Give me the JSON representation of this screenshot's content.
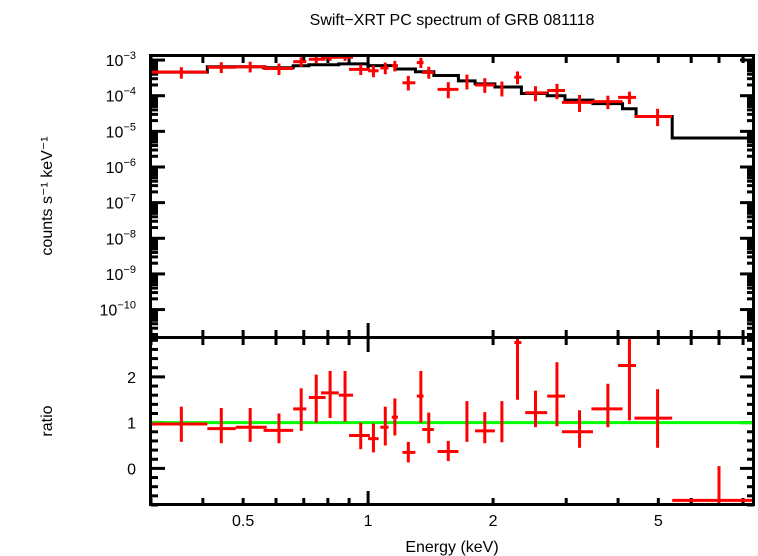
{
  "chart_data": {
    "type": "scatter",
    "title": "Swift−XRT PC spectrum of GRB 081118",
    "xlabel": "Energy (keV)",
    "xscale": "log",
    "xlim": [
      0.3,
      8.5
    ],
    "x_ticks": [
      {
        "value": 0.5,
        "label": "0.5"
      },
      {
        "value": 1,
        "label": "1"
      },
      {
        "value": 2,
        "label": "2"
      },
      {
        "value": 5,
        "label": "5"
      }
    ],
    "colors": {
      "data": "#ff0000",
      "model": "#000000",
      "unity_line": "#00ff00",
      "axes": "#000000"
    },
    "panels": [
      {
        "name": "spectrum",
        "ylabel": "counts s⁻¹ keV⁻¹",
        "yscale": "log",
        "ylim": [
          1.7e-11,
          0.0013
        ],
        "y_ticks": [
          {
            "value": 0.001,
            "base": "10",
            "exp": "−3"
          },
          {
            "value": 0.0001,
            "base": "10",
            "exp": "−4"
          },
          {
            "value": 1e-05,
            "base": "10",
            "exp": "−5"
          },
          {
            "value": 1e-06,
            "base": "10",
            "exp": "−6"
          },
          {
            "value": 1e-07,
            "base": "10",
            "exp": "−7"
          },
          {
            "value": 1e-08,
            "base": "10",
            "exp": "−8"
          },
          {
            "value": 1e-09,
            "base": "10",
            "exp": "−9"
          },
          {
            "value": 1e-10,
            "base": "10",
            "exp": "−10"
          }
        ],
        "data": [
          {
            "x": 0.355,
            "xlo": 0.3,
            "xhi": 0.41,
            "y": 0.00046,
            "ylo": 0.0003,
            "yhi": 0.00063
          },
          {
            "x": 0.443,
            "xlo": 0.41,
            "xhi": 0.48,
            "y": 0.00063,
            "ylo": 0.00043,
            "yhi": 0.00087
          },
          {
            "x": 0.52,
            "xlo": 0.48,
            "xhi": 0.57,
            "y": 0.00065,
            "ylo": 0.00045,
            "yhi": 0.0009
          },
          {
            "x": 0.61,
            "xlo": 0.56,
            "xhi": 0.66,
            "y": 0.00058,
            "ylo": 0.00038,
            "yhi": 0.0008
          },
          {
            "x": 0.69,
            "xlo": 0.66,
            "xhi": 0.71,
            "y": 0.0009,
            "ylo": 0.00065,
            "yhi": 0.0012
          },
          {
            "x": 0.75,
            "xlo": 0.72,
            "xhi": 0.79,
            "y": 0.00105,
            "ylo": 0.0008,
            "yhi": 0.0013
          },
          {
            "x": 0.81,
            "xlo": 0.77,
            "xhi": 0.85,
            "y": 0.0012,
            "ylo": 0.00095,
            "yhi": 0.0013
          },
          {
            "x": 0.88,
            "xlo": 0.85,
            "xhi": 0.92,
            "y": 0.0012,
            "ylo": 0.00095,
            "yhi": 0.0013
          },
          {
            "x": 0.96,
            "xlo": 0.9,
            "xhi": 1.01,
            "y": 0.00055,
            "ylo": 0.00038,
            "yhi": 0.00075
          },
          {
            "x": 1.03,
            "xlo": 1.0,
            "xhi": 1.06,
            "y": 0.0005,
            "ylo": 0.00033,
            "yhi": 0.0007
          },
          {
            "x": 1.1,
            "xlo": 1.07,
            "xhi": 1.12,
            "y": 0.0006,
            "ylo": 0.0004,
            "yhi": 0.00085
          },
          {
            "x": 1.16,
            "xlo": 1.14,
            "xhi": 1.18,
            "y": 0.0007,
            "ylo": 0.00048,
            "yhi": 0.00095
          },
          {
            "x": 1.25,
            "xlo": 1.21,
            "xhi": 1.3,
            "y": 0.00023,
            "ylo": 0.00014,
            "yhi": 0.00036
          },
          {
            "x": 1.34,
            "xlo": 1.31,
            "xhi": 1.36,
            "y": 0.00085,
            "ylo": 0.0006,
            "yhi": 0.00115
          },
          {
            "x": 1.4,
            "xlo": 1.35,
            "xhi": 1.44,
            "y": 0.00045,
            "ylo": 0.0003,
            "yhi": 0.00065
          },
          {
            "x": 1.56,
            "xlo": 1.47,
            "xhi": 1.65,
            "y": 0.00015,
            "ylo": 8.5e-05,
            "yhi": 0.00024
          },
          {
            "x": 1.73,
            "xlo": 1.72,
            "xhi": 1.74,
            "y": 0.00025,
            "ylo": 0.00015,
            "yhi": 0.00039
          },
          {
            "x": 1.91,
            "xlo": 1.81,
            "xhi": 2.02,
            "y": 0.0002,
            "ylo": 0.00012,
            "yhi": 0.00031
          },
          {
            "x": 2.1,
            "xlo": 2.09,
            "xhi": 2.11,
            "y": 0.00016,
            "ylo": 9.5e-05,
            "yhi": 0.00025
          },
          {
            "x": 2.29,
            "xlo": 2.25,
            "xhi": 2.34,
            "y": 0.00033,
            "ylo": 0.00021,
            "yhi": 0.00048
          },
          {
            "x": 2.53,
            "xlo": 2.39,
            "xhi": 2.7,
            "y": 0.00012,
            "ylo": 7e-05,
            "yhi": 0.000185
          },
          {
            "x": 2.85,
            "xlo": 2.7,
            "xhi": 2.98,
            "y": 0.00014,
            "ylo": 8e-05,
            "yhi": 0.000215
          },
          {
            "x": 3.23,
            "xlo": 2.93,
            "xhi": 3.48,
            "y": 6.5e-05,
            "ylo": 3.5e-05,
            "yhi": 0.000105
          },
          {
            "x": 3.78,
            "xlo": 3.45,
            "xhi": 4.1,
            "y": 6.8e-05,
            "ylo": 4.2e-05,
            "yhi": 0.0001
          },
          {
            "x": 4.26,
            "xlo": 4.0,
            "xhi": 4.42,
            "y": 9e-05,
            "ylo": 5.8e-05,
            "yhi": 0.00013
          },
          {
            "x": 4.98,
            "xlo": 4.38,
            "xhi": 5.4,
            "y": 2.6e-05,
            "ylo": 1.4e-05,
            "yhi": 4.3e-05
          }
        ],
        "model": [
          {
            "xlo": 0.3,
            "xhi": 0.41,
            "y": 0.00046
          },
          {
            "xlo": 0.41,
            "xhi": 0.56,
            "y": 0.00065
          },
          {
            "xlo": 0.56,
            "xhi": 0.66,
            "y": 0.00061
          },
          {
            "xlo": 0.66,
            "xhi": 0.72,
            "y": 0.00069
          },
          {
            "xlo": 0.72,
            "xhi": 0.85,
            "y": 0.00074
          },
          {
            "xlo": 0.85,
            "xhi": 1.0,
            "y": 0.00078
          },
          {
            "xlo": 1.0,
            "xhi": 1.16,
            "y": 0.0007
          },
          {
            "xlo": 1.16,
            "xhi": 1.3,
            "y": 0.00056
          },
          {
            "xlo": 1.3,
            "xhi": 1.44,
            "y": 0.00047
          },
          {
            "xlo": 1.44,
            "xhi": 1.65,
            "y": 0.00037
          },
          {
            "xlo": 1.65,
            "xhi": 1.81,
            "y": 0.00026
          },
          {
            "xlo": 1.81,
            "xhi": 2.02,
            "y": 0.000215
          },
          {
            "xlo": 2.02,
            "xhi": 2.34,
            "y": 0.000175
          },
          {
            "xlo": 2.34,
            "xhi": 2.7,
            "y": 0.000115
          },
          {
            "xlo": 2.7,
            "xhi": 2.98,
            "y": 0.0001
          },
          {
            "xlo": 2.98,
            "xhi": 3.48,
            "y": 7.5e-05
          },
          {
            "xlo": 3.48,
            "xhi": 4.1,
            "y": 6e-05
          },
          {
            "xlo": 4.1,
            "xhi": 4.42,
            "y": 4.3e-05
          },
          {
            "xlo": 4.42,
            "xhi": 5.4,
            "y": 2.6e-05
          },
          {
            "xlo": 5.4,
            "xhi": 8.5,
            "y": 6.5e-06
          }
        ]
      },
      {
        "name": "ratio",
        "ylabel": "ratio",
        "yscale": "linear",
        "ylim": [
          -0.8,
          2.85
        ],
        "y_ticks": [
          {
            "value": 0,
            "label": "0"
          },
          {
            "value": 1,
            "label": "1"
          },
          {
            "value": 2,
            "label": "2"
          }
        ],
        "unity": 1,
        "data": [
          {
            "x": 0.355,
            "xlo": 0.3,
            "xhi": 0.41,
            "y": 0.97,
            "ylo": 0.58,
            "yhi": 1.35
          },
          {
            "x": 0.443,
            "xlo": 0.41,
            "xhi": 0.48,
            "y": 0.87,
            "ylo": 0.55,
            "yhi": 1.32
          },
          {
            "x": 0.52,
            "xlo": 0.48,
            "xhi": 0.57,
            "y": 0.9,
            "ylo": 0.58,
            "yhi": 1.32
          },
          {
            "x": 0.61,
            "xlo": 0.56,
            "xhi": 0.66,
            "y": 0.83,
            "ylo": 0.55,
            "yhi": 1.2
          },
          {
            "x": 0.69,
            "xlo": 0.66,
            "xhi": 0.71,
            "y": 1.3,
            "ylo": 0.82,
            "yhi": 1.75
          },
          {
            "x": 0.75,
            "xlo": 0.72,
            "xhi": 0.79,
            "y": 1.55,
            "ylo": 1.0,
            "yhi": 2.05
          },
          {
            "x": 0.81,
            "xlo": 0.77,
            "xhi": 0.85,
            "y": 1.65,
            "ylo": 1.1,
            "yhi": 2.13
          },
          {
            "x": 0.88,
            "xlo": 0.85,
            "xhi": 0.92,
            "y": 1.6,
            "ylo": 1.02,
            "yhi": 2.13
          },
          {
            "x": 0.96,
            "xlo": 0.9,
            "xhi": 1.01,
            "y": 0.72,
            "ylo": 0.42,
            "yhi": 1.0
          },
          {
            "x": 1.03,
            "xlo": 1.0,
            "xhi": 1.06,
            "y": 0.65,
            "ylo": 0.35,
            "yhi": 0.98
          },
          {
            "x": 1.1,
            "xlo": 1.07,
            "xhi": 1.12,
            "y": 0.9,
            "ylo": 0.5,
            "yhi": 1.35
          },
          {
            "x": 1.16,
            "xlo": 1.14,
            "xhi": 1.18,
            "y": 1.12,
            "ylo": 0.72,
            "yhi": 1.53
          },
          {
            "x": 1.25,
            "xlo": 1.21,
            "xhi": 1.3,
            "y": 0.35,
            "ylo": 0.13,
            "yhi": 0.58
          },
          {
            "x": 1.34,
            "xlo": 1.31,
            "xhi": 1.36,
            "y": 1.58,
            "ylo": 1.0,
            "yhi": 2.13
          },
          {
            "x": 1.4,
            "xlo": 1.35,
            "xhi": 1.44,
            "y": 0.85,
            "ylo": 0.55,
            "yhi": 1.22
          },
          {
            "x": 1.56,
            "xlo": 1.47,
            "xhi": 1.65,
            "y": 0.37,
            "ylo": 0.16,
            "yhi": 0.6
          },
          {
            "x": 1.73,
            "xlo": 1.72,
            "xhi": 1.74,
            "y": 0.98,
            "ylo": 0.58,
            "yhi": 1.47
          },
          {
            "x": 1.91,
            "xlo": 1.81,
            "xhi": 2.02,
            "y": 0.82,
            "ylo": 0.55,
            "yhi": 1.23
          },
          {
            "x": 2.1,
            "xlo": 2.09,
            "xhi": 2.11,
            "y": 0.97,
            "ylo": 0.57,
            "yhi": 1.47
          },
          {
            "x": 2.29,
            "xlo": 2.25,
            "xhi": 2.34,
            "y": 2.75,
            "ylo": 1.5,
            "yhi": 2.85
          },
          {
            "x": 2.53,
            "xlo": 2.39,
            "xhi": 2.7,
            "y": 1.22,
            "ylo": 0.9,
            "yhi": 1.7
          },
          {
            "x": 2.85,
            "xlo": 2.7,
            "xhi": 2.98,
            "y": 1.58,
            "ylo": 0.92,
            "yhi": 2.32
          },
          {
            "x": 3.23,
            "xlo": 2.93,
            "xhi": 3.48,
            "y": 0.8,
            "ylo": 0.45,
            "yhi": 1.27
          },
          {
            "x": 3.78,
            "xlo": 3.45,
            "xhi": 4.1,
            "y": 1.3,
            "ylo": 0.9,
            "yhi": 1.85
          },
          {
            "x": 4.26,
            "xlo": 4.0,
            "xhi": 4.42,
            "y": 2.25,
            "ylo": 1.05,
            "yhi": 2.85
          },
          {
            "x": 4.98,
            "xlo": 4.38,
            "xhi": 5.4,
            "y": 1.1,
            "ylo": 0.45,
            "yhi": 1.73
          },
          {
            "x": 7.0,
            "xlo": 5.4,
            "xhi": 8.5,
            "y": -0.7,
            "ylo": -0.8,
            "yhi": 0.05
          }
        ]
      }
    ]
  }
}
